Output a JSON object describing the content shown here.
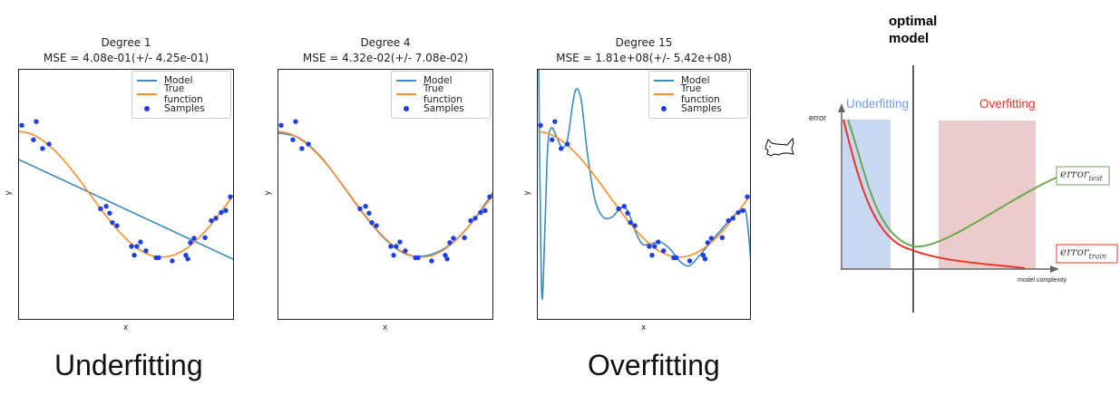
{
  "colors": {
    "model": "#3b8bc2",
    "true_function": "#ff8c2a",
    "samples": "#1f3fe6",
    "underfit_region": "#c9d8f2",
    "overfit_region": "#ecccca",
    "test_curve": "#6aa84f",
    "train_curve": "#ee3322",
    "underfit_label": "#6d9eeb",
    "overfit_label": "#ee3322"
  },
  "chart_data": [
    {
      "type": "line",
      "title": "Degree 1",
      "subtitle": "MSE = 4.08e-01(+/- 4.25e-01)",
      "xlabel": "x",
      "ylabel": "y",
      "xlim": [
        0,
        1
      ],
      "ylim": [
        -2,
        2
      ],
      "legend": "top-right",
      "legend_entries": [
        "Model",
        "True function",
        "Samples"
      ],
      "model": [
        [
          0,
          0.56
        ],
        [
          1,
          -1.04
        ]
      ]
    },
    {
      "type": "line",
      "title": "Degree 4",
      "subtitle": "MSE = 4.32e-02(+/- 7.08e-02)",
      "xlabel": "x",
      "ylabel": "y",
      "xlim": [
        0,
        1
      ],
      "ylim": [
        -2,
        2
      ],
      "legend": "top-right",
      "legend_entries": [
        "Model",
        "True function",
        "Samples"
      ],
      "model": [
        [
          0,
          0.98
        ],
        [
          0.1,
          0.9
        ],
        [
          0.2,
          0.6
        ],
        [
          0.3,
          0.15
        ],
        [
          0.4,
          -0.32
        ],
        [
          0.5,
          -0.72
        ],
        [
          0.6,
          -0.96
        ],
        [
          0.7,
          -0.97
        ],
        [
          0.8,
          -0.8
        ],
        [
          0.9,
          -0.45
        ],
        [
          1,
          0.04
        ]
      ]
    },
    {
      "type": "line",
      "title": "Degree 15",
      "subtitle": "MSE = 1.81e+08(+/- 5.42e+08)",
      "xlabel": "x",
      "ylabel": "y",
      "xlim": [
        0,
        1
      ],
      "ylim": [
        -2,
        2
      ],
      "legend": "top-right",
      "legend_entries": [
        "Model",
        "True function",
        "Samples"
      ],
      "model": [
        [
          0.008,
          2.2
        ],
        [
          0.017,
          -0.5
        ],
        [
          0.025,
          -1.67
        ],
        [
          0.038,
          -0.5
        ],
        [
          0.051,
          0.77
        ],
        [
          0.068,
          1.06
        ],
        [
          0.093,
          0.91
        ],
        [
          0.119,
          0.74
        ],
        [
          0.144,
          0.89
        ],
        [
          0.169,
          1.48
        ],
        [
          0.186,
          1.68
        ],
        [
          0.208,
          1.48
        ],
        [
          0.237,
          0.63
        ],
        [
          0.271,
          -0.08
        ],
        [
          0.309,
          -0.36
        ],
        [
          0.352,
          -0.36
        ],
        [
          0.39,
          -0.22
        ],
        [
          0.424,
          -0.26
        ],
        [
          0.458,
          -0.57
        ],
        [
          0.492,
          -0.79
        ],
        [
          0.534,
          -0.79
        ],
        [
          0.576,
          -0.76
        ],
        [
          0.619,
          -0.86
        ],
        [
          0.669,
          -1.07
        ],
        [
          0.712,
          -1.14
        ],
        [
          0.754,
          -1.0
        ],
        [
          0.805,
          -0.79
        ],
        [
          0.86,
          -0.57
        ],
        [
          0.915,
          -0.36
        ],
        [
          0.958,
          -0.25
        ],
        [
          0.979,
          -0.33
        ],
        [
          1.0,
          -1.07
        ]
      ]
    }
  ],
  "samples": [
    [
      0.017,
      1.1
    ],
    [
      0.084,
      1.16
    ],
    [
      0.071,
      0.87
    ],
    [
      0.113,
      0.73
    ],
    [
      0.143,
      0.8
    ],
    [
      0.382,
      -0.23
    ],
    [
      0.408,
      -0.19
    ],
    [
      0.424,
      -0.3
    ],
    [
      0.437,
      -0.45
    ],
    [
      0.458,
      -0.5
    ],
    [
      0.525,
      -0.83
    ],
    [
      0.538,
      -0.97
    ],
    [
      0.55,
      -0.83
    ],
    [
      0.567,
      -0.76
    ],
    [
      0.592,
      -0.9
    ],
    [
      0.639,
      -1.01
    ],
    [
      0.651,
      -1.01
    ],
    [
      0.714,
      -1.06
    ],
    [
      0.777,
      -0.97
    ],
    [
      0.786,
      -1.03
    ],
    [
      0.798,
      -0.77
    ],
    [
      0.815,
      -0.7
    ],
    [
      0.866,
      -0.69
    ],
    [
      0.895,
      -0.42
    ],
    [
      0.916,
      -0.38
    ],
    [
      0.941,
      -0.29
    ],
    [
      0.962,
      -0.26
    ],
    [
      0.983,
      -0.04
    ]
  ],
  "captions": {
    "left": "Underfitting",
    "right": "Overfitting"
  },
  "diagram": {
    "optimal_line1": "optimal",
    "optimal_line2": "model",
    "underfitting": "Underfitting",
    "overfitting": "Overfitting",
    "y_axis": "error",
    "x_axis": "model complexity",
    "test_base": "error",
    "test_sub": "test",
    "train_base": "error",
    "train_sub": "train"
  },
  "cursor_icon": "cat-cursor-icon"
}
